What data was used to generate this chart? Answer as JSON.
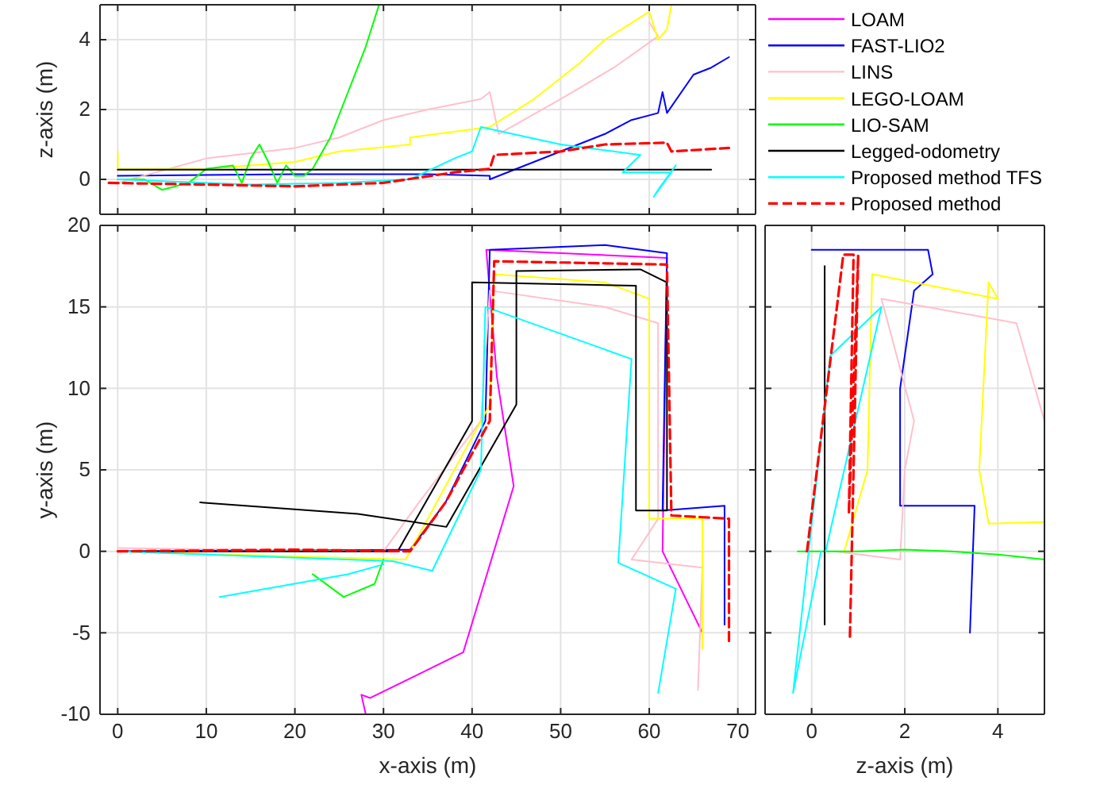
{
  "chart_data": [
    {
      "type": "line",
      "ylabel": "z-axis (m)",
      "xlim": [
        -2,
        72
      ],
      "ylim": [
        -1,
        5
      ],
      "xticks": [
        0,
        10,
        20,
        30,
        40,
        50,
        60,
        70
      ],
      "yticks": [
        0,
        2,
        4
      ],
      "grid": true,
      "tick_labels": "y",
      "series": [
        {
          "color": "#0000ff",
          "x": [
            0,
            20,
            35,
            42,
            42,
            45,
            50,
            55,
            58,
            61,
            61.5,
            62,
            65,
            67,
            69
          ],
          "values": [
            0.1,
            0.15,
            0.15,
            0.1,
            0,
            0.3,
            0.8,
            1.3,
            1.7,
            1.9,
            2.5,
            1.9,
            3.0,
            3.2,
            3.5
          ]
        },
        {
          "color": "#ffc0cb",
          "x": [
            0,
            10,
            20,
            25,
            30,
            35,
            41,
            42,
            42.5,
            43,
            50,
            56,
            61,
            60
          ],
          "values": [
            -0.1,
            0.6,
            0.9,
            1.2,
            1.7,
            2.0,
            2.3,
            2.5,
            1.9,
            1.3,
            2.3,
            3.2,
            4.1,
            4.5
          ]
        },
        {
          "color": "#ffff00",
          "x": [
            0,
            0,
            10,
            20,
            25,
            33,
            33,
            42,
            47,
            52,
            55,
            60,
            61,
            62,
            62.5
          ],
          "values": [
            0.8,
            0.3,
            0.3,
            0.5,
            0.8,
            1.0,
            1.2,
            1.5,
            2.3,
            3.3,
            4.0,
            4.8,
            4.0,
            4.3,
            5.0
          ]
        },
        {
          "color": "#00ff00",
          "x": [
            0,
            3,
            5,
            8,
            10,
            13,
            14,
            15,
            16,
            17,
            18,
            19,
            20,
            21,
            22,
            24,
            26,
            28,
            29.5
          ],
          "values": [
            0,
            0,
            -0.3,
            -0.1,
            0.3,
            0.4,
            -0.1,
            0.6,
            1.0,
            0.5,
            -0.1,
            0.4,
            0.1,
            0.1,
            0.3,
            1.2,
            2.5,
            3.8,
            5.0
          ]
        },
        {
          "color": "#000000",
          "x": [
            0,
            67
          ],
          "values": [
            0.28,
            0.28
          ]
        },
        {
          "color": "#00ffff",
          "x": [
            0,
            15,
            25,
            33,
            38,
            40,
            41,
            50,
            59,
            57,
            62.5,
            60.5,
            61,
            63
          ],
          "values": [
            0,
            -0.15,
            -0.1,
            0,
            0.6,
            0.8,
            1.5,
            1.0,
            0.7,
            0.2,
            0.2,
            -0.5,
            -0.3,
            0.4
          ]
        },
        {
          "color": "#ff0000",
          "line_style": "dashed",
          "x": [
            -1,
            10,
            20,
            30,
            38,
            42,
            42.5,
            50,
            55,
            62,
            62.5,
            69
          ],
          "values": [
            -0.1,
            -0.15,
            -0.2,
            -0.1,
            0.2,
            0.3,
            0.7,
            0.8,
            1.0,
            1.05,
            0.8,
            0.9
          ]
        }
      ]
    },
    {
      "type": "line",
      "xlabel": "x-axis (m)",
      "ylabel": "y-axis (m)",
      "xlim": [
        -2,
        72
      ],
      "ylim": [
        -10,
        20
      ],
      "xticks": [
        0,
        10,
        20,
        30,
        40,
        50,
        60,
        70
      ],
      "yticks": [
        -10,
        -5,
        0,
        5,
        10,
        15,
        20
      ],
      "grid": true,
      "legend": "right",
      "series": [
        {
          "name": "LOAM",
          "color": "#ff00ff",
          "x": [
            28,
            27.5,
            28.5,
            39,
            44.7,
            42.8,
            41.6,
            62,
            61.5,
            66
          ],
          "values": [
            -10,
            -8.8,
            -9,
            -6.2,
            4,
            10.7,
            18.5,
            18,
            0,
            -5
          ]
        },
        {
          "name": "FAST-LIO2",
          "color": "#0000ff",
          "x": [
            0,
            33,
            37,
            41.5,
            42,
            55,
            62,
            61.5,
            68.5,
            68.5
          ],
          "values": [
            0,
            0.1,
            3,
            8,
            18.5,
            18.8,
            18.3,
            2.5,
            2.8,
            -4.5
          ]
        },
        {
          "name": "LINS",
          "color": "#ffc0cb",
          "x": [
            0,
            30,
            34,
            41,
            42,
            55,
            61,
            61,
            58,
            66,
            65.5
          ],
          "values": [
            0.2,
            0,
            3,
            8,
            16,
            15,
            14,
            2,
            -0.5,
            -1,
            -8.5
          ]
        },
        {
          "name": "LEGO-LOAM",
          "color": "#ffff00",
          "x": [
            0,
            32.5,
            36,
            42,
            42.5,
            55,
            60,
            60,
            66,
            66
          ],
          "values": [
            0,
            -0.5,
            3,
            9,
            17,
            16.5,
            15.5,
            2,
            2,
            -6
          ]
        },
        {
          "name": "LIO-SAM",
          "color": "#00ff00",
          "x": [
            30,
            29,
            25.5,
            22
          ],
          "values": [
            -0.5,
            -2,
            -2.8,
            -1.4
          ]
        },
        {
          "name": "Legged-odometry",
          "color": "#000000",
          "x": [
            9.3,
            27.1,
            37.1,
            45,
            45,
            59,
            62,
            62,
            58.5,
            58.5,
            40,
            40,
            31.6,
            0
          ],
          "values": [
            3.0,
            2.3,
            1.5,
            9,
            17.2,
            17.3,
            16.5,
            2.5,
            2.5,
            16.3,
            16.5,
            8,
            0,
            0
          ]
        },
        {
          "name": "Proposed method TFS",
          "color": "#00ffff",
          "x": [
            0,
            31,
            35.5,
            41,
            41.5,
            58,
            56.5,
            63,
            61,
            null,
            11.5,
            26,
            30
          ],
          "values": [
            0,
            -0.6,
            -1.2,
            5,
            15,
            11.8,
            -0.7,
            -2.3,
            -8.7,
            null,
            -2.8,
            -1.4,
            -0.8
          ]
        },
        {
          "name": "Proposed method",
          "color": "#ff0000",
          "line_style": "dashed",
          "x": [
            0,
            20,
            33,
            37,
            42,
            42.5,
            62,
            62.5,
            69,
            69
          ],
          "values": [
            0,
            0.1,
            0,
            3,
            8,
            17.8,
            17.6,
            2.2,
            2.0,
            -5.5
          ]
        }
      ]
    },
    {
      "type": "line",
      "xlabel": "z-axis (m)",
      "xlim": [
        -1,
        5
      ],
      "ylim": [
        -10,
        20
      ],
      "xticks": [
        0,
        2,
        4
      ],
      "yticks": [
        -10,
        -5,
        0,
        5,
        10,
        15,
        20
      ],
      "grid": true,
      "tick_labels": "x",
      "series": [
        {
          "color": "#0000ff",
          "x": [
            0,
            2.5,
            2.6,
            2.2,
            1.9,
            1.9,
            3.5,
            3.4
          ],
          "values": [
            18.5,
            18.5,
            17,
            16,
            10,
            2.8,
            2.8,
            -5
          ]
        },
        {
          "color": "#ffc0cb",
          "x": [
            0.5,
            1.9,
            2,
            2.2,
            1.5,
            4.4,
            5
          ],
          "values": [
            0,
            -0.5,
            5,
            8,
            15.5,
            14,
            8
          ]
        },
        {
          "color": "#ffff00",
          "x": [
            0.7,
            1.2,
            1.3,
            4,
            3.8,
            3.6,
            3.8,
            5
          ],
          "values": [
            0,
            5,
            17,
            15.5,
            16.5,
            5,
            1.7,
            1.8
          ]
        },
        {
          "color": "#00ff00",
          "x": [
            -0.3,
            1,
            2,
            3,
            4,
            5
          ],
          "values": [
            0,
            0,
            0.1,
            0,
            -0.2,
            -0.5
          ]
        },
        {
          "color": "#000000",
          "x": [
            0.28,
            0.28
          ],
          "values": [
            -4.5,
            17.5
          ]
        },
        {
          "color": "#00ffff",
          "x": [
            0.3,
            1.5,
            0.4,
            -0.4,
            0.1,
            0.2
          ],
          "values": [
            0,
            15,
            12,
            -8.7,
            -1.5,
            0
          ]
        },
        {
          "color": "#ff0000",
          "line_style": "dashed",
          "x": [
            -0.1,
            0.68,
            0.9,
            0.8,
            1.0,
            0.82
          ],
          "values": [
            0,
            18.2,
            18.2,
            2.3,
            18.2,
            -5.5
          ]
        }
      ]
    }
  ]
}
